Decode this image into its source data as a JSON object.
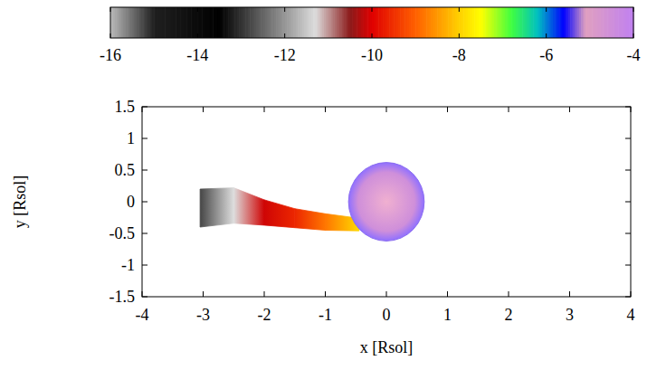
{
  "chart_data": {
    "type": "stream",
    "xlabel": "x [Rsol]",
    "ylabel": "y [Rsol]",
    "xlim": [
      -4,
      4
    ],
    "ylim": [
      -1.5,
      1.5
    ],
    "xticks": [
      -4,
      -3,
      -2,
      -1,
      0,
      1,
      2,
      3,
      4
    ],
    "yticks": [
      -1.5,
      -1,
      -0.5,
      0,
      0.5,
      1,
      1.5
    ],
    "colorbar": {
      "range": [
        -16,
        -4
      ],
      "ticks": [
        -16,
        -14,
        -12,
        -10,
        -8,
        -6,
        -4
      ]
    },
    "stream": {
      "x": [
        -3.05,
        -2.5,
        -2,
        -1.5,
        -1,
        -0.45
      ],
      "y": [
        -0.1,
        -0.06,
        -0.17,
        -0.26,
        -0.32,
        -0.36
      ],
      "half_width": [
        0.3,
        0.28,
        0.2,
        0.15,
        0.13,
        0.1
      ],
      "value": [
        -12.8,
        -11.3,
        -10.1,
        -9.6,
        -8.8,
        -7.9
      ]
    },
    "sun": {
      "x": 0,
      "y": 0,
      "r": 0.62,
      "value": -4.5
    }
  }
}
